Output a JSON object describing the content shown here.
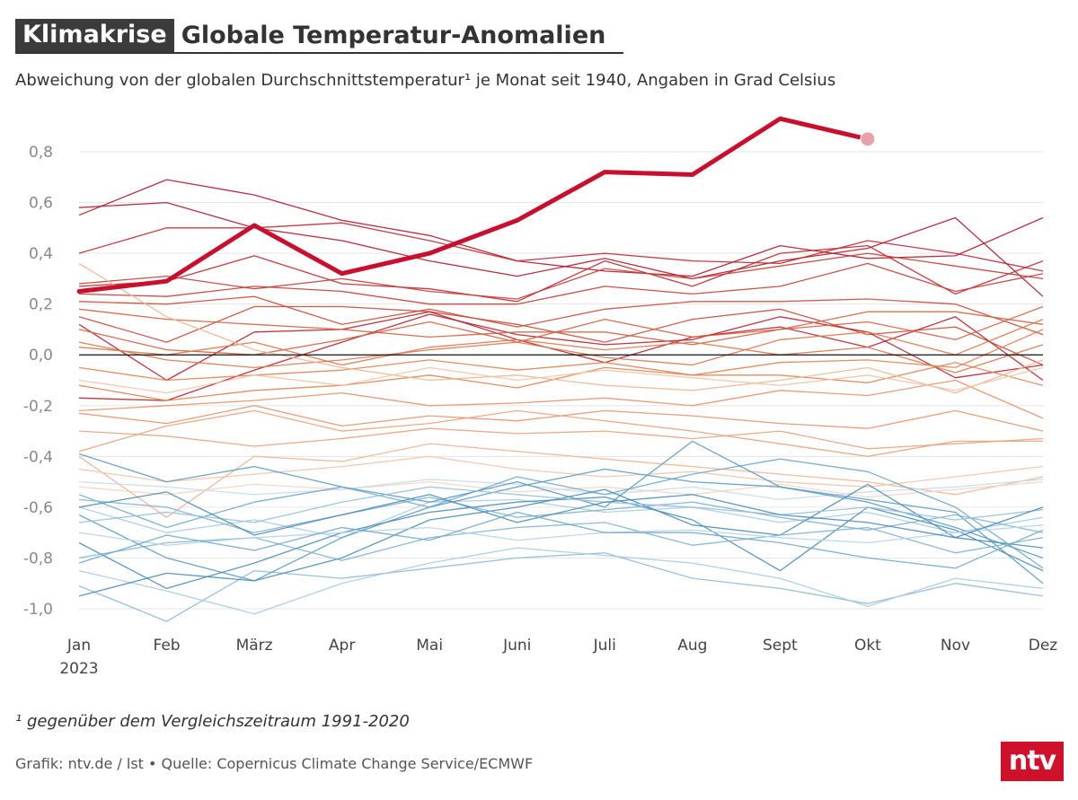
{
  "header": {
    "tag": "Klimakrise",
    "title": "Globale Temperatur-Anomalien",
    "subtitle": "Abweichung von der globalen Durchschnittstemperatur¹ je Monat seit 1940, Angaben in Grad Celsius"
  },
  "footnote": "¹ gegenüber dem Vergleichszeitraum 1991-2020",
  "source": "Grafik: ntv.de / lst • Quelle: Copernicus Climate Change Service/ECMWF",
  "logo": "ntv",
  "chart_data": {
    "type": "line",
    "title": "Globale Temperatur-Anomalien",
    "xlabel": "",
    "ylabel": "Grad Celsius",
    "categories": [
      "Jan",
      "Feb",
      "März",
      "Apr",
      "Mai",
      "Juni",
      "Juli",
      "Aug",
      "Sept",
      "Okt",
      "Nov",
      "Dez"
    ],
    "year_label": "2023",
    "ylim": [
      -1.05,
      0.95
    ],
    "yticks": [
      0.8,
      0.6,
      0.4,
      0.2,
      0.0,
      -0.2,
      -0.4,
      -0.6,
      -0.8,
      -1.0
    ],
    "ytick_labels": [
      "0,8",
      "0,6",
      "0,4",
      "0,2",
      "0,0",
      "-0,2",
      "-0,4",
      "-0,6",
      "-0,8",
      "-1,0"
    ],
    "grid": true,
    "highlight": {
      "name": "2023",
      "color": "#c8102e",
      "values": [
        0.25,
        0.29,
        0.51,
        0.32,
        0.4,
        0.53,
        0.72,
        0.71,
        0.93,
        0.85
      ]
    },
    "series": [
      {
        "name": "y01",
        "color": "#b2182b",
        "values": [
          0.58,
          0.6,
          0.5,
          0.45,
          0.37,
          0.31,
          0.38,
          0.3,
          0.37,
          0.42,
          0.54,
          0.23
        ]
      },
      {
        "name": "y02",
        "color": "#b2182b",
        "values": [
          0.55,
          0.69,
          0.63,
          0.53,
          0.47,
          0.37,
          0.33,
          0.31,
          0.43,
          0.38,
          0.39,
          0.54
        ]
      },
      {
        "name": "y03",
        "color": "#c0272d",
        "values": [
          0.4,
          0.5,
          0.5,
          0.52,
          0.45,
          0.37,
          0.4,
          0.37,
          0.36,
          0.45,
          0.4,
          0.33
        ]
      },
      {
        "name": "y04",
        "color": "#c0272d",
        "values": [
          0.27,
          0.29,
          0.39,
          0.28,
          0.26,
          0.21,
          0.37,
          0.27,
          0.4,
          0.43,
          0.24,
          0.37
        ]
      },
      {
        "name": "y05",
        "color": "#c53c34",
        "values": [
          0.28,
          0.31,
          0.26,
          0.3,
          0.25,
          0.22,
          0.34,
          0.3,
          0.35,
          0.4,
          0.35,
          0.3
        ]
      },
      {
        "name": "y06",
        "color": "#c53c34",
        "values": [
          0.24,
          0.23,
          0.27,
          0.25,
          0.2,
          0.2,
          0.27,
          0.24,
          0.27,
          0.36,
          0.25,
          0.32
        ]
      },
      {
        "name": "y07",
        "color": "#ca4a3a",
        "values": [
          0.21,
          0.2,
          0.23,
          0.12,
          0.18,
          0.11,
          0.18,
          0.21,
          0.21,
          0.22,
          0.2,
          0.08
        ]
      },
      {
        "name": "y08",
        "color": "#ca4a3a",
        "values": [
          0.15,
          0.05,
          0.19,
          0.19,
          0.17,
          0.12,
          0.05,
          0.14,
          0.18,
          0.08,
          0.11,
          -0.04
        ]
      },
      {
        "name": "y09",
        "color": "#b8202e",
        "values": [
          0.12,
          -0.1,
          0.09,
          0.1,
          0.17,
          0.06,
          -0.03,
          0.07,
          0.11,
          0.03,
          0.15,
          -0.1
        ]
      },
      {
        "name": "y10",
        "color": "#b8202e",
        "values": [
          -0.17,
          -0.18,
          -0.06,
          0.05,
          0.16,
          0.08,
          0.04,
          0.06,
          0.15,
          0.09,
          -0.09,
          -0.04
        ]
      },
      {
        "name": "y11",
        "color": "#d2603f",
        "values": [
          0.1,
          0.02,
          0.0,
          0.06,
          0.13,
          0.05,
          0.14,
          0.07,
          0.1,
          0.17,
          0.17,
          0.12
        ]
      },
      {
        "name": "y12",
        "color": "#d2603f",
        "values": [
          0.18,
          0.14,
          0.12,
          0.1,
          0.07,
          0.09,
          0.09,
          0.04,
          0.1,
          0.13,
          0.06,
          0.19
        ]
      },
      {
        "name": "y13",
        "color": "#d9774b",
        "values": [
          0.05,
          -0.02,
          -0.05,
          -0.02,
          0.02,
          0.05,
          -0.01,
          -0.04,
          0.06,
          0.09,
          0.0,
          0.14
        ]
      },
      {
        "name": "y14",
        "color": "#d9774b",
        "values": [
          0.03,
          0.0,
          0.05,
          -0.04,
          0.03,
          0.06,
          0.02,
          0.05,
          0.0,
          0.03,
          -0.07,
          0.04
        ]
      },
      {
        "name": "y15",
        "color": "#dd8352",
        "values": [
          -0.05,
          -0.1,
          -0.08,
          -0.06,
          -0.02,
          -0.06,
          -0.03,
          -0.08,
          -0.03,
          -0.02,
          -0.05,
          0.1
        ]
      },
      {
        "name": "y16",
        "color": "#dd8352",
        "values": [
          -0.12,
          -0.18,
          -0.14,
          -0.12,
          -0.08,
          -0.13,
          -0.05,
          -0.08,
          -0.08,
          -0.11,
          -0.03,
          -0.12
        ]
      },
      {
        "name": "y17",
        "color": "#e3946a",
        "values": [
          -0.22,
          -0.2,
          -0.18,
          -0.15,
          -0.2,
          -0.19,
          -0.17,
          -0.2,
          -0.14,
          -0.16,
          -0.1,
          -0.25
        ]
      },
      {
        "name": "y18",
        "color": "#e3946a",
        "values": [
          -0.23,
          -0.27,
          -0.2,
          -0.28,
          -0.24,
          -0.26,
          -0.22,
          -0.24,
          -0.27,
          -0.29,
          -0.22,
          -0.3
        ]
      },
      {
        "name": "y19",
        "color": "#e8a27c",
        "values": [
          -0.3,
          -0.32,
          -0.36,
          -0.33,
          -0.29,
          -0.31,
          -0.3,
          -0.33,
          -0.3,
          -0.37,
          -0.35,
          -0.33
        ]
      },
      {
        "name": "y20",
        "color": "#e8a27c",
        "values": [
          -0.38,
          -0.28,
          -0.22,
          -0.3,
          -0.27,
          -0.22,
          -0.26,
          -0.3,
          -0.35,
          -0.4,
          -0.34,
          -0.34
        ]
      },
      {
        "name": "y21",
        "color": "#eeb592",
        "values": [
          0.36,
          0.15,
          0.02,
          -0.05,
          -0.1,
          -0.08,
          -0.12,
          -0.14,
          -0.1,
          -0.05,
          -0.15,
          -0.02
        ]
      },
      {
        "name": "y22",
        "color": "#eeb592",
        "values": [
          -0.4,
          -0.64,
          -0.4,
          -0.42,
          -0.35,
          -0.38,
          -0.41,
          -0.44,
          -0.47,
          -0.5,
          -0.55,
          -0.48
        ]
      },
      {
        "name": "y23",
        "color": "#f2c4a8",
        "values": [
          -0.45,
          -0.5,
          -0.47,
          -0.44,
          -0.4,
          -0.45,
          -0.48,
          -0.46,
          -0.5,
          -0.52,
          -0.48,
          -0.44
        ]
      },
      {
        "name": "y24",
        "color": "#f2c4a8",
        "values": [
          -0.1,
          -0.15,
          -0.08,
          -0.12,
          -0.05,
          -0.1,
          -0.06,
          -0.09,
          -0.12,
          -0.08,
          -0.14,
          -0.05
        ]
      },
      {
        "name": "y25",
        "color": "#f6d4c1",
        "values": [
          -0.52,
          -0.55,
          -0.51,
          -0.53,
          -0.5,
          -0.54,
          -0.52,
          -0.55,
          -0.51,
          -0.56,
          -0.53,
          -0.5
        ]
      },
      {
        "name": "y26",
        "color": "#c6dbe8",
        "values": [
          -0.5,
          -0.52,
          -0.55,
          -0.53,
          -0.49,
          -0.51,
          -0.55,
          -0.52,
          -0.57,
          -0.54,
          -0.52,
          -0.49
        ]
      },
      {
        "name": "y27",
        "color": "#a9cbe0",
        "values": [
          -0.6,
          -0.7,
          -0.65,
          -0.72,
          -0.58,
          -0.57,
          -0.62,
          -0.6,
          -0.66,
          -0.62,
          -0.7,
          -0.64
        ]
      },
      {
        "name": "y28",
        "color": "#8fbad6",
        "values": [
          -0.91,
          -1.05,
          -0.85,
          -0.88,
          -0.84,
          -0.8,
          -0.78,
          -0.88,
          -0.92,
          -0.98,
          -0.9,
          -0.95
        ]
      },
      {
        "name": "y29",
        "color": "#a9cbe0",
        "values": [
          -0.85,
          -0.93,
          -1.02,
          -0.9,
          -0.82,
          -0.76,
          -0.79,
          -0.82,
          -0.88,
          -0.99,
          -0.88,
          -0.92
        ]
      },
      {
        "name": "y30",
        "color": "#6fa8cb",
        "values": [
          -0.55,
          -0.68,
          -0.58,
          -0.52,
          -0.6,
          -0.48,
          -0.55,
          -0.47,
          -0.41,
          -0.46,
          -0.6,
          -0.84
        ]
      },
      {
        "name": "y31",
        "color": "#5b9bc2",
        "values": [
          -0.63,
          -0.8,
          -0.89,
          -0.72,
          -0.6,
          -0.52,
          -0.45,
          -0.5,
          -0.52,
          -0.58,
          -0.68,
          -0.8
        ]
      },
      {
        "name": "y32",
        "color": "#5b9bc2",
        "values": [
          -0.39,
          -0.5,
          -0.44,
          -0.52,
          -0.58,
          -0.5,
          -0.6,
          -0.34,
          -0.52,
          -0.57,
          -0.62,
          -0.9
        ]
      },
      {
        "name": "y33",
        "color": "#4a8db8",
        "values": [
          -0.95,
          -0.86,
          -0.89,
          -0.8,
          -0.65,
          -0.6,
          -0.53,
          -0.67,
          -0.71,
          -0.51,
          -0.72,
          -0.76
        ]
      },
      {
        "name": "y34",
        "color": "#4a8db8",
        "values": [
          -0.74,
          -0.92,
          -0.82,
          -0.7,
          -0.62,
          -0.58,
          -0.56,
          -0.65,
          -0.85,
          -0.6,
          -0.69,
          -0.85
        ]
      },
      {
        "name": "y35",
        "color": "#7fb2d2",
        "values": [
          -0.57,
          -0.6,
          -0.7,
          -0.63,
          -0.56,
          -0.64,
          -0.61,
          -0.58,
          -0.64,
          -0.69,
          -0.63,
          -0.7
        ]
      },
      {
        "name": "y36",
        "color": "#7fb2d2",
        "values": [
          -0.8,
          -0.74,
          -0.72,
          -0.81,
          -0.72,
          -0.68,
          -0.66,
          -0.75,
          -0.71,
          -0.68,
          -0.78,
          -0.72
        ]
      },
      {
        "name": "y37",
        "color": "#94c0da",
        "values": [
          -0.66,
          -0.62,
          -0.66,
          -0.58,
          -0.52,
          -0.55,
          -0.58,
          -0.6,
          -0.63,
          -0.6,
          -0.65,
          -0.61
        ]
      },
      {
        "name": "y38",
        "color": "#b7d4e6",
        "values": [
          -0.7,
          -0.75,
          -0.72,
          -0.7,
          -0.68,
          -0.73,
          -0.7,
          -0.69,
          -0.72,
          -0.74,
          -0.7,
          -0.67
        ]
      },
      {
        "name": "y39",
        "color": "#4a8db8",
        "values": [
          -0.6,
          -0.54,
          -0.71,
          -0.63,
          -0.55,
          -0.66,
          -0.58,
          -0.55,
          -0.63,
          -0.66,
          -0.72,
          -0.6
        ]
      },
      {
        "name": "y40",
        "color": "#6fa8cb",
        "values": [
          -0.82,
          -0.71,
          -0.77,
          -0.68,
          -0.73,
          -0.62,
          -0.7,
          -0.7,
          -0.74,
          -0.8,
          -0.84,
          -0.69
        ]
      }
    ]
  }
}
